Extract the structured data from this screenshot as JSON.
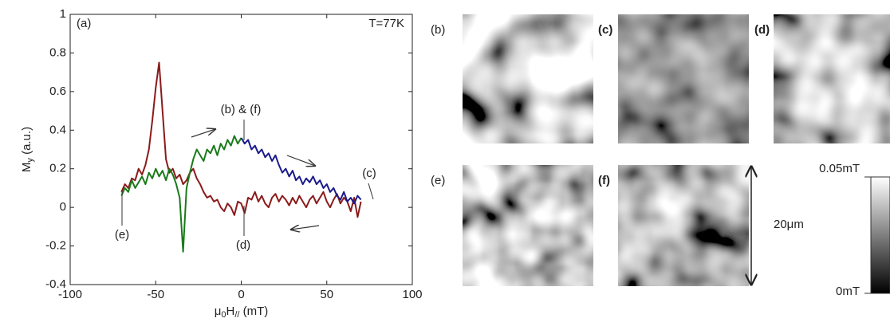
{
  "chart_data": {
    "type": "line",
    "xlabel_parts": [
      "μ",
      "0",
      "H",
      "//",
      " (mT)"
    ],
    "ylabel_parts": [
      "M",
      "y",
      " (a.u.)"
    ],
    "xlim": [
      -100,
      100
    ],
    "ylim": [
      -0.4,
      1
    ],
    "xticks": [
      -100,
      -50,
      0,
      50,
      100
    ],
    "yticks": [
      -0.4,
      -0.2,
      0,
      0.2,
      0.4,
      0.6,
      0.8,
      1
    ],
    "annotations": [
      "(a)",
      "T=77K",
      "(b) & (f)",
      "(c)",
      "(d)",
      "(e)"
    ],
    "x": [
      -70,
      -68,
      -66,
      -64,
      -62,
      -60,
      -58,
      -56,
      -54,
      -52,
      -50,
      -48,
      -46,
      -44,
      -42,
      -40,
      -38,
      -36,
      -34,
      -32,
      -30,
      -28,
      -26,
      -24,
      -22,
      -20,
      -18,
      -16,
      -14,
      -12,
      -10,
      -8,
      -6,
      -4,
      -2,
      0,
      2,
      4,
      6,
      8,
      10,
      12,
      14,
      16,
      18,
      20,
      22,
      24,
      26,
      28,
      30,
      32,
      34,
      36,
      38,
      40,
      42,
      44,
      46,
      48,
      50,
      52,
      54,
      56,
      58,
      60,
      62,
      64,
      66,
      68,
      70
    ],
    "series": [
      {
        "color": "#8b1a1a",
        "values": [
          0.08,
          0.12,
          0.1,
          0.15,
          0.14,
          0.2,
          0.17,
          0.22,
          0.3,
          0.45,
          0.62,
          0.75,
          0.5,
          0.25,
          0.18,
          0.2,
          0.15,
          0.17,
          0.12,
          0.14,
          0.18,
          0.2,
          0.15,
          0.12,
          0.08,
          0.05,
          0.06,
          0.03,
          0.04,
          0.0,
          -0.02,
          0.02,
          0.0,
          -0.04,
          0.03,
          0.02,
          -0.03,
          0.05,
          0.04,
          0.08,
          0.03,
          0.06,
          0.02,
          0.0,
          0.05,
          0.07,
          0.03,
          0.06,
          0.04,
          0.01,
          0.05,
          0.02,
          0.06,
          0.03,
          0.0,
          0.04,
          0.06,
          0.02,
          0.05,
          0.08,
          0.03,
          0.0,
          0.04,
          0.07,
          0.02,
          0.05,
          0.03,
          -0.02,
          0.05,
          -0.05,
          0.03
        ]
      },
      {
        "color": "#1a7a1a",
        "values": [
          0.06,
          0.1,
          0.08,
          0.14,
          0.1,
          0.13,
          0.16,
          0.12,
          0.18,
          0.15,
          0.2,
          0.16,
          0.19,
          0.14,
          0.2,
          0.17,
          0.12,
          0.05,
          -0.23,
          0.1,
          0.18,
          0.25,
          0.3,
          0.27,
          0.24,
          0.3,
          0.28,
          0.32,
          0.27,
          0.33,
          0.3,
          0.35,
          0.32,
          0.37,
          0.33,
          0.36,
          null,
          null,
          null,
          null,
          null,
          null,
          null,
          null,
          null,
          null,
          null,
          null,
          null,
          null,
          null,
          null,
          null,
          null,
          null,
          null,
          null,
          null,
          null,
          null,
          null,
          null,
          null,
          null,
          null,
          null,
          null,
          null,
          null,
          null,
          null
        ]
      },
      {
        "color": "#1a1a8b",
        "values": [
          null,
          null,
          null,
          null,
          null,
          null,
          null,
          null,
          null,
          null,
          null,
          null,
          null,
          null,
          null,
          null,
          null,
          null,
          null,
          null,
          null,
          null,
          null,
          null,
          null,
          null,
          null,
          null,
          null,
          null,
          null,
          null,
          null,
          null,
          null,
          0.36,
          0.33,
          0.35,
          0.3,
          0.32,
          0.28,
          0.3,
          0.26,
          0.28,
          0.24,
          0.27,
          0.22,
          0.18,
          0.2,
          0.16,
          0.19,
          0.14,
          0.16,
          0.12,
          0.15,
          0.13,
          0.16,
          0.12,
          0.14,
          0.1,
          0.12,
          0.08,
          0.1,
          0.06,
          0.04,
          0.08,
          0.03,
          0.05,
          0.02,
          0.06,
          0.04
        ]
      }
    ]
  },
  "panels": [
    "(b)",
    "(c)",
    "(d)",
    "(e)",
    "(f)"
  ],
  "scale_label": "20μm",
  "colorbar_labels": [
    "0.05mT",
    "0mT"
  ]
}
